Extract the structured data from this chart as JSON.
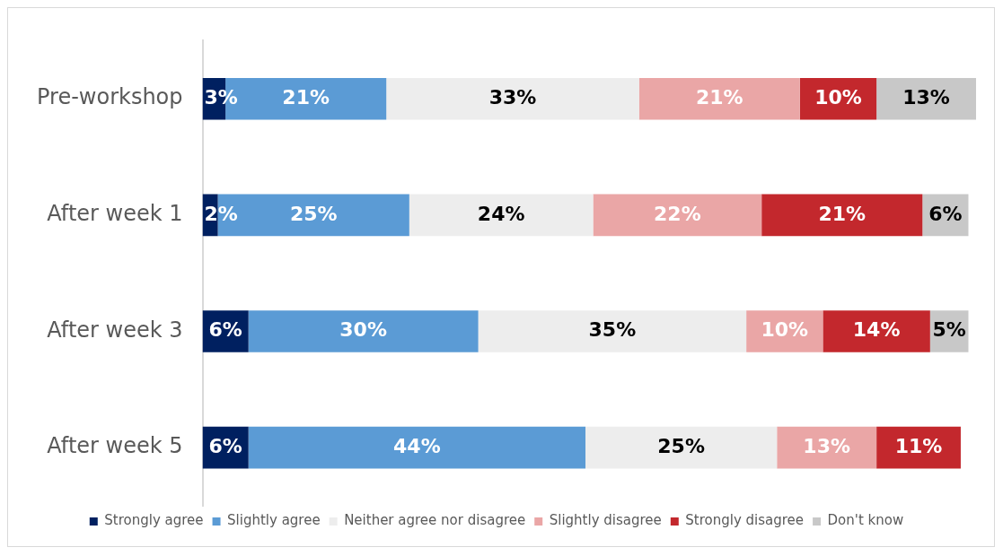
{
  "chart_data": {
    "type": "bar",
    "orientation": "horizontal",
    "stacked": true,
    "tick_labels": "y",
    "legend": "bottom",
    "categories": [
      "Pre-workshop",
      "After week 1",
      "After week 3",
      "After week 5"
    ],
    "series": [
      {
        "name": "Strongly agree",
        "color": "#002060",
        "values": [
          3,
          2,
          6,
          6
        ],
        "value_labels": [
          "3%",
          "2%",
          "6%",
          "6%"
        ]
      },
      {
        "name": "Slightly agree",
        "color": "#5b9bd5",
        "values": [
          21,
          25,
          30,
          44
        ],
        "value_labels": [
          "21%",
          "25%",
          "30%",
          "44%"
        ]
      },
      {
        "name": "Neither agree nor disagree",
        "color": "#ededed",
        "values": [
          33,
          24,
          35,
          25
        ],
        "value_labels": [
          "33%",
          "24%",
          "35%",
          "25%"
        ]
      },
      {
        "name": "Slightly disagree",
        "color": "#eaa6a6",
        "values": [
          21,
          22,
          10,
          13
        ],
        "value_labels": [
          "21%",
          "22%",
          "10%",
          "13%"
        ]
      },
      {
        "name": "Strongly disagree",
        "color": "#c3282d",
        "values": [
          10,
          21,
          14,
          11
        ],
        "value_labels": [
          "10%",
          "21%",
          "14%",
          "11%"
        ]
      },
      {
        "name": "Don't know",
        "color": "#c8c8c8",
        "values": [
          13,
          6,
          5,
          null
        ],
        "value_labels": [
          "13%",
          "6%",
          "5%",
          null
        ]
      }
    ]
  }
}
